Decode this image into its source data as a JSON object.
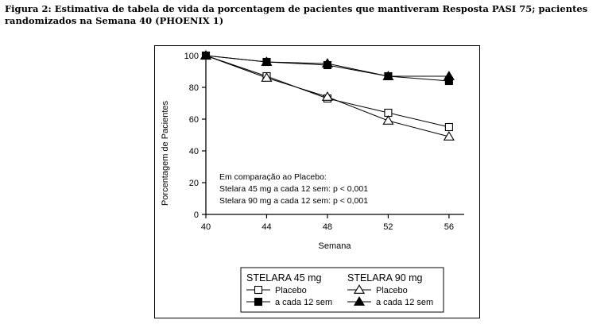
{
  "caption": "Figura 2: Estimativa de tabela de vida da porcentagem de pacientes que mantiveram Resposta PASI 75; pacientes randomizados na Semana 40 (PHOENIX 1)",
  "chart_data": {
    "type": "line",
    "xlabel": "Semana",
    "ylabel": "Porcentagem de Pacientes",
    "x": [
      40,
      44,
      48,
      52,
      56
    ],
    "x_ticks": [
      "40",
      "44",
      "48",
      "52",
      "56"
    ],
    "y_ticks": [
      "0",
      "20",
      "40",
      "60",
      "80",
      "100"
    ],
    "xlim": [
      40,
      57
    ],
    "ylim": [
      0,
      100
    ],
    "grid": false,
    "series": [
      {
        "name": "Placebo",
        "group": "STELARA 45 mg",
        "marker": "square-open",
        "values": [
          100,
          87,
          73,
          64,
          55
        ]
      },
      {
        "name": "a cada 12 sem",
        "group": "STELARA 45 mg",
        "marker": "square-filled",
        "values": [
          100,
          96,
          94,
          87,
          84
        ]
      },
      {
        "name": "Placebo",
        "group": "STELARA 90 mg",
        "marker": "triangle-open",
        "values": [
          100,
          86,
          74,
          59,
          49
        ]
      },
      {
        "name": "a cada 12 sem",
        "group": "STELARA 90 mg",
        "marker": "triangle-filled",
        "values": [
          100,
          96,
          95,
          87,
          87
        ]
      }
    ],
    "annotations": [
      "Em comparação ao Placebo:",
      "Stelara 45 mg a cada 12 sem: p < 0,001",
      "Stelara 90 mg a cada 12 sem: p < 0,001"
    ],
    "legend": {
      "placement": "bottom",
      "group_headers": [
        "STELARA 45 mg",
        "STELARA 90 mg"
      ],
      "items": [
        {
          "label": "Placebo",
          "marker": "square-open"
        },
        {
          "label": "a cada 12 sem",
          "marker": "square-filled"
        },
        {
          "label": "Placebo",
          "marker": "triangle-open"
        },
        {
          "label": "a cada 12 sem",
          "marker": "triangle-filled"
        }
      ]
    }
  }
}
